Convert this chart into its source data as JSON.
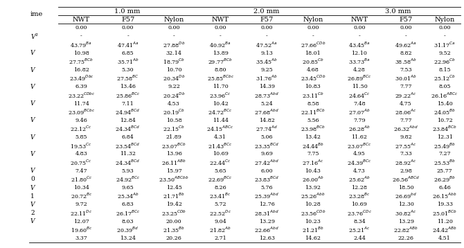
{
  "col_groups": [
    "1.0 mm",
    "2.0 mm",
    "3.0 mm"
  ],
  "col_headers": [
    "NWT",
    "F57",
    "Nylon",
    "NWT",
    "F57",
    "Nylon",
    "NWT",
    "F57",
    "Nylon"
  ],
  "row_labels": [
    "",
    "V$^{2}$",
    "",
    "V",
    "",
    "V",
    "",
    "V",
    "",
    "V",
    "",
    "V",
    "",
    "V",
    "",
    "V",
    "",
    "V",
    "0",
    "V",
    "1",
    "V",
    "2",
    "V"
  ],
  "rows": [
    [
      "0.00",
      "0.00",
      "0.00",
      "0.00",
      "0.00",
      "0.00",
      "0.00",
      "0.00",
      "0.00"
    ],
    [
      "-",
      "-",
      "-",
      "-",
      "-",
      "-",
      "-",
      "-",
      "-"
    ],
    [
      "43.79$^{Ba}$",
      "47.41$^{Aa}$",
      "27.88$^{Db}$",
      "40.92$^{Ba}$",
      "47.52$^{Aa}$",
      "27.66$^{CDb}$",
      "43.45$^{Ba}$",
      "49.62$^{Aa}$",
      "31.17$^{Ca}$"
    ],
    [
      "10.98",
      "6.85",
      "32.14",
      "13.89",
      "9.13",
      "18.01",
      "12.10",
      "8.82",
      "9.52"
    ],
    [
      "27.75$^{BCb}$",
      "35.71$^{Ab}$",
      "18.79$^{Cb}$",
      "29.77$^{BCb}$",
      "35.45$^{Ab}$",
      "20.85$^{Cb}$",
      "33.73$^{Ba}$",
      "38.58$^{Ab}$",
      "22.96$^{Cb}$"
    ],
    [
      "16.82",
      "5.30",
      "10.70",
      "8.80",
      "9.25",
      "4.68",
      "4.28",
      "7.53",
      "8.15"
    ],
    [
      "23.49$^{Dbc}$",
      "27.58$^{BC}$",
      "20.34$^{Db}$",
      "25.85$^{BCbc}$",
      "31.76$^{Ab}$",
      "23.45$^{CDb}$",
      "26.89$^{BCc}$",
      "30.01$^{Ab}$",
      "25.12$^{Cb}$"
    ],
    [
      "6.39",
      "13.46",
      "9.22",
      "11.70",
      "14.39",
      "10.83",
      "11.50",
      "7.77",
      "8.05"
    ],
    [
      "23.22$^{CDbc}$",
      "25.86$^{BCc}$",
      "20.24$^{Db}$",
      "23.96$^{Cc}$",
      "28.73$^{Abd}$",
      "23.11$^{Cb}$",
      "24.64$^{Cc}$",
      "29.22$^{Ac}$",
      "26.16$^{ABCc}$"
    ],
    [
      "11.74",
      "7.11",
      "4.53",
      "10.42",
      "5.24",
      "8.58",
      "7.48",
      "4.75",
      "15.40"
    ],
    [
      "23.09$^{BCbc}$",
      "24.94$^{BCd}$",
      "20.19$^{Cb}$",
      "24.72$^{BCc}$",
      "27.68$^{Abd}$",
      "22.11$^{BCb}$",
      "27.07$^{Ab}$",
      "28.06$^{Ac}$",
      "24.05$^{Bb}$"
    ],
    [
      "9.46",
      "12.84",
      "10.58",
      "11.44",
      "14.82",
      "5.56",
      "7.79",
      "7.77",
      "10.72"
    ],
    [
      "22.12$^{Cc}$",
      "24.34$^{BCd}$",
      "22.15$^{Cb}$",
      "24.15$^{ABCc}$",
      "27.74$^{Ad}$",
      "23.98$^{BCb}$",
      "26.28$^{Ab}$",
      "26.32$^{Abd}$",
      "23.84$^{BCb}$"
    ],
    [
      "5.85",
      "6.84",
      "21.89",
      "4.31",
      "5.06",
      "13.42",
      "11.62",
      "9.82",
      "12.31"
    ],
    [
      "19.53$^{Cc}$",
      "23.54$^{BCd}$",
      "23.07$^{BCb}$",
      "21.43$^{BCc}$",
      "23.35$^{BCd}$",
      "24.44$^{Bb}$",
      "23.07$^{BCc}$",
      "27.55$^{Ac}$",
      "25.49$^{Bb}$"
    ],
    [
      "4.83",
      "11.32",
      "13.96",
      "10.69",
      "9.69",
      "7.75",
      "4.95",
      "7.33",
      "7.27"
    ],
    [
      "20.75$^{Cc}$",
      "24.34$^{BCd}$",
      "26.11$^{ABb}$",
      "22.44$^{Cc}$",
      "27.42$^{Abd}$",
      "27.16$^{Ac}$",
      "24.39$^{BCc}$",
      "28.92$^{Ac}$",
      "25.53$^{Bb}$"
    ],
    [
      "7.47",
      "5.93",
      "15.97",
      "5.65",
      "6.00",
      "10.43",
      "4.73",
      "2.98",
      "25.77"
    ],
    [
      "21.80$^{Cc}$",
      "24.92$^{BCc}$",
      "23.50$^{ABCbb}$",
      "22.69$^{BCc}$",
      "23.83$^{BCd}$",
      "26.00$^{Ab}$",
      "25.62$^{Ab}$",
      "26.56$^{ABCd}$",
      "26.29$^{Bb}$"
    ],
    [
      "10.34",
      "9.65",
      "12.45",
      "8.26",
      "5.76",
      "13.92",
      "12.28",
      "18.50",
      "6.46"
    ],
    [
      "20.72$^{Bc}$",
      "25.34$^{Ab}$",
      "21.71$^{Bb}$",
      "23.41$^{Bc}$",
      "25.39$^{Abd}$",
      "25.26$^{Abb}$",
      "23.28$^{Bc}$",
      "26.69$^{bd}$",
      "26.15$^{Abb}$"
    ],
    [
      "9.72",
      "6.83",
      "19.42",
      "5.72",
      "12.76",
      "10.28",
      "10.69",
      "12.30",
      "19.33"
    ],
    [
      "22.11$^{Dc}$",
      "26.17$^{BCc}$",
      "23.25$^{CDb}$",
      "22.52$^{Dc}$",
      "28.31$^{Abd}$",
      "23.56$^{CDb}$",
      "23.76$^{CDc}$",
      "30.82$^{Ac}$",
      "25.01$^{BCb}$"
    ],
    [
      "12.07",
      "8.03",
      "20.00",
      "9.04",
      "13.29",
      "10.23",
      "8.34",
      "13.29",
      "11.20"
    ],
    [
      "19.60$^{Bc}$",
      "20.39$^{Bd}$",
      "21.35$^{Bb}$",
      "21.82$^{Ab}$",
      "22.66$^{Abd}$",
      "21.21$^{Bb}$",
      "25.21$^{Ac}$",
      "22.82$^{ABb}$",
      "24.42$^{ABb}$"
    ],
    [
      "3.37",
      "13.24",
      "20.26",
      "2.71",
      "12.63",
      "14.62",
      "2.44",
      "22.26",
      "4.51"
    ]
  ]
}
